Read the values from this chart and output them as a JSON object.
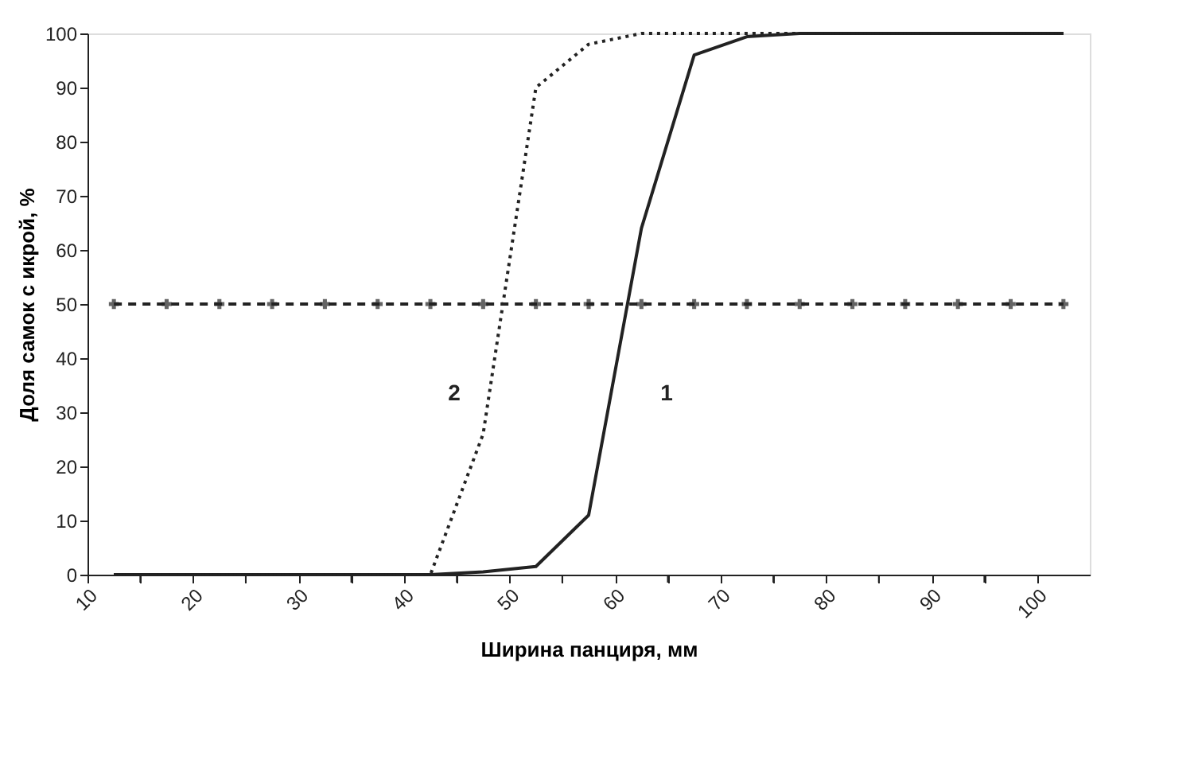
{
  "chart_data": {
    "type": "line",
    "xlabel": "Ширина панциря, мм",
    "ylabel": "Доля самок с икрой, %",
    "x": [
      12.5,
      17.5,
      22.5,
      27.5,
      32.5,
      37.5,
      42.5,
      47.5,
      52.5,
      57.5,
      62.5,
      67.5,
      72.5,
      77.5,
      82.5,
      87.5,
      92.5,
      97.5,
      102.5
    ],
    "series": [
      {
        "name": "1",
        "color": "#222222",
        "line_style": "solid",
        "marker": "none",
        "values": [
          0,
          0,
          0,
          0,
          0,
          0,
          0,
          0.5,
          1.5,
          11,
          64,
          96,
          99.4,
          100,
          100,
          100,
          100,
          100,
          100
        ]
      },
      {
        "name": "2",
        "color": "#222222",
        "line_style": "dotted",
        "marker": "none",
        "values": [
          0,
          0,
          0,
          0,
          0,
          0,
          0,
          26,
          90,
          98,
          100,
          100,
          100,
          100,
          100,
          100,
          100,
          100,
          100
        ]
      },
      {
        "color": "#222222",
        "line_style": "dashed",
        "marker": "cross",
        "values": [
          50,
          50,
          50,
          50,
          50,
          50,
          50,
          50,
          50,
          50,
          50,
          50,
          50,
          50,
          50,
          50,
          50,
          50,
          50
        ]
      }
    ],
    "xlim": [
      10,
      105
    ],
    "xticks": [
      10,
      {
        "value": 15,
        "label": null
      },
      20,
      {
        "value": 25,
        "label": null
      },
      30,
      {
        "value": 35,
        "label": null
      },
      40,
      {
        "value": 45,
        "label": null
      },
      50,
      {
        "value": 55,
        "label": null
      },
      60,
      {
        "value": 65,
        "label": null
      },
      70,
      {
        "value": 75,
        "label": null
      },
      80,
      {
        "value": 85,
        "label": null
      },
      90,
      {
        "value": 95,
        "label": null
      },
      100
    ],
    "ylim": [
      0,
      100
    ],
    "yticks": [
      0,
      10,
      20,
      30,
      40,
      50,
      60,
      70,
      80,
      90,
      100
    ],
    "grid": false
  }
}
